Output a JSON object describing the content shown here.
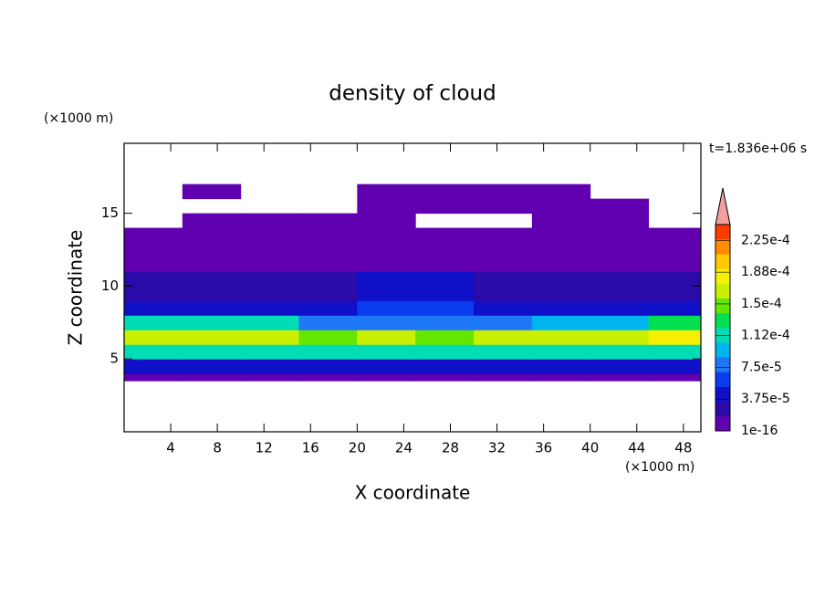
{
  "chart_data": {
    "type": "contour",
    "title": "density of cloud",
    "x_label": "X coordinate",
    "y_label": "Z coordinate",
    "x_unit": "(×1000 m)",
    "y_unit": "(×1000 m)",
    "time_label": "t=1.836e+06 s",
    "xlim": [
      0,
      49.5
    ],
    "ylim": [
      0,
      19.8
    ],
    "xticks": [
      4,
      8,
      12,
      16,
      20,
      24,
      28,
      32,
      36,
      40,
      44,
      48
    ],
    "yticks": [
      5,
      10,
      15
    ],
    "x_edges": [
      0,
      5,
      10,
      15,
      20,
      25,
      30,
      35,
      40,
      45,
      50
    ],
    "z_edges": [
      3.5,
      4,
      5,
      6,
      7,
      8,
      9,
      10,
      11,
      12,
      13,
      14,
      15,
      16,
      17
    ],
    "values": [
      [
        1e-05,
        1e-05,
        1e-05,
        1e-05,
        1e-05,
        1e-05,
        1e-05,
        1e-05,
        1e-05,
        1e-05
      ],
      [
        5e-05,
        5e-05,
        5e-05,
        4.5e-05,
        5e-05,
        5e-05,
        5e-05,
        5e-05,
        5e-05,
        5e-05
      ],
      [
        0.00012,
        0.00012,
        0.00012,
        0.00011,
        0.00012,
        0.00011,
        0.00012,
        0.00012,
        0.00012,
        0.00012
      ],
      [
        0.00017,
        0.00017,
        0.000165,
        0.00014,
        0.00016,
        0.00014,
        0.000165,
        0.00017,
        0.00017,
        0.000175
      ],
      [
        0.00011,
        0.00011,
        0.000105,
        8e-05,
        8e-05,
        8e-05,
        8e-05,
        0.0001,
        0.0001,
        0.00013
      ],
      [
        4.5e-05,
        4.5e-05,
        4.5e-05,
        4.5e-05,
        5.5e-05,
        5.5e-05,
        4.5e-05,
        4.5e-05,
        4.5e-05,
        5e-05
      ],
      [
        3e-05,
        3e-05,
        3e-05,
        3e-05,
        5e-05,
        5e-05,
        3e-05,
        3e-05,
        3e-05,
        3e-05
      ],
      [
        2e-05,
        2e-05,
        2e-05,
        2e-05,
        4e-05,
        4e-05,
        2e-05,
        2e-05,
        2e-05,
        2e-05
      ],
      [
        1e-05,
        1e-05,
        1e-05,
        1e-05,
        1.5e-05,
        1.5e-05,
        1e-05,
        1e-05,
        1e-05,
        1e-05
      ],
      [
        8e-06,
        8e-06,
        8e-06,
        8e-06,
        8e-06,
        8e-06,
        8e-06,
        8e-06,
        8e-06,
        8e-06
      ],
      [
        5e-06,
        5e-06,
        5e-06,
        5e-06,
        5e-06,
        5e-06,
        5e-06,
        5e-06,
        5e-06,
        5e-06
      ],
      [
        null,
        5e-06,
        5e-06,
        5e-06,
        5e-06,
        null,
        null,
        5e-06,
        5e-06,
        null
      ],
      [
        null,
        null,
        null,
        null,
        5e-06,
        5e-06,
        5e-06,
        5e-06,
        5e-06,
        null
      ],
      [
        null,
        5e-06,
        null,
        null,
        5e-06,
        5e-06,
        5e-06,
        5e-06,
        null,
        null
      ]
    ],
    "colorbar": {
      "lim": [
        0,
        0.00024375
      ],
      "colors": [
        "#6000b0",
        "#2a0aa8",
        "#1010c8",
        "#0a3cf0",
        "#1e78f5",
        "#00b4f0",
        "#00dcb4",
        "#00e050",
        "#64e600",
        "#c8f000",
        "#f5f000",
        "#ffc800",
        "#ff8c00",
        "#ff3c00"
      ],
      "extend_color": "#f0a0a0",
      "ticks": [
        {
          "value": 1e-16,
          "label": "1e-16"
        },
        {
          "value": 3.75e-05,
          "label": "3.75e-5"
        },
        {
          "value": 7.5e-05,
          "label": "7.5e-5"
        },
        {
          "value": 0.0001125,
          "label": "1.12e-4"
        },
        {
          "value": 0.00015,
          "label": "1.5e-4"
        },
        {
          "value": 0.0001875,
          "label": "1.88e-4"
        },
        {
          "value": 0.000225,
          "label": "2.25e-4"
        }
      ]
    }
  }
}
